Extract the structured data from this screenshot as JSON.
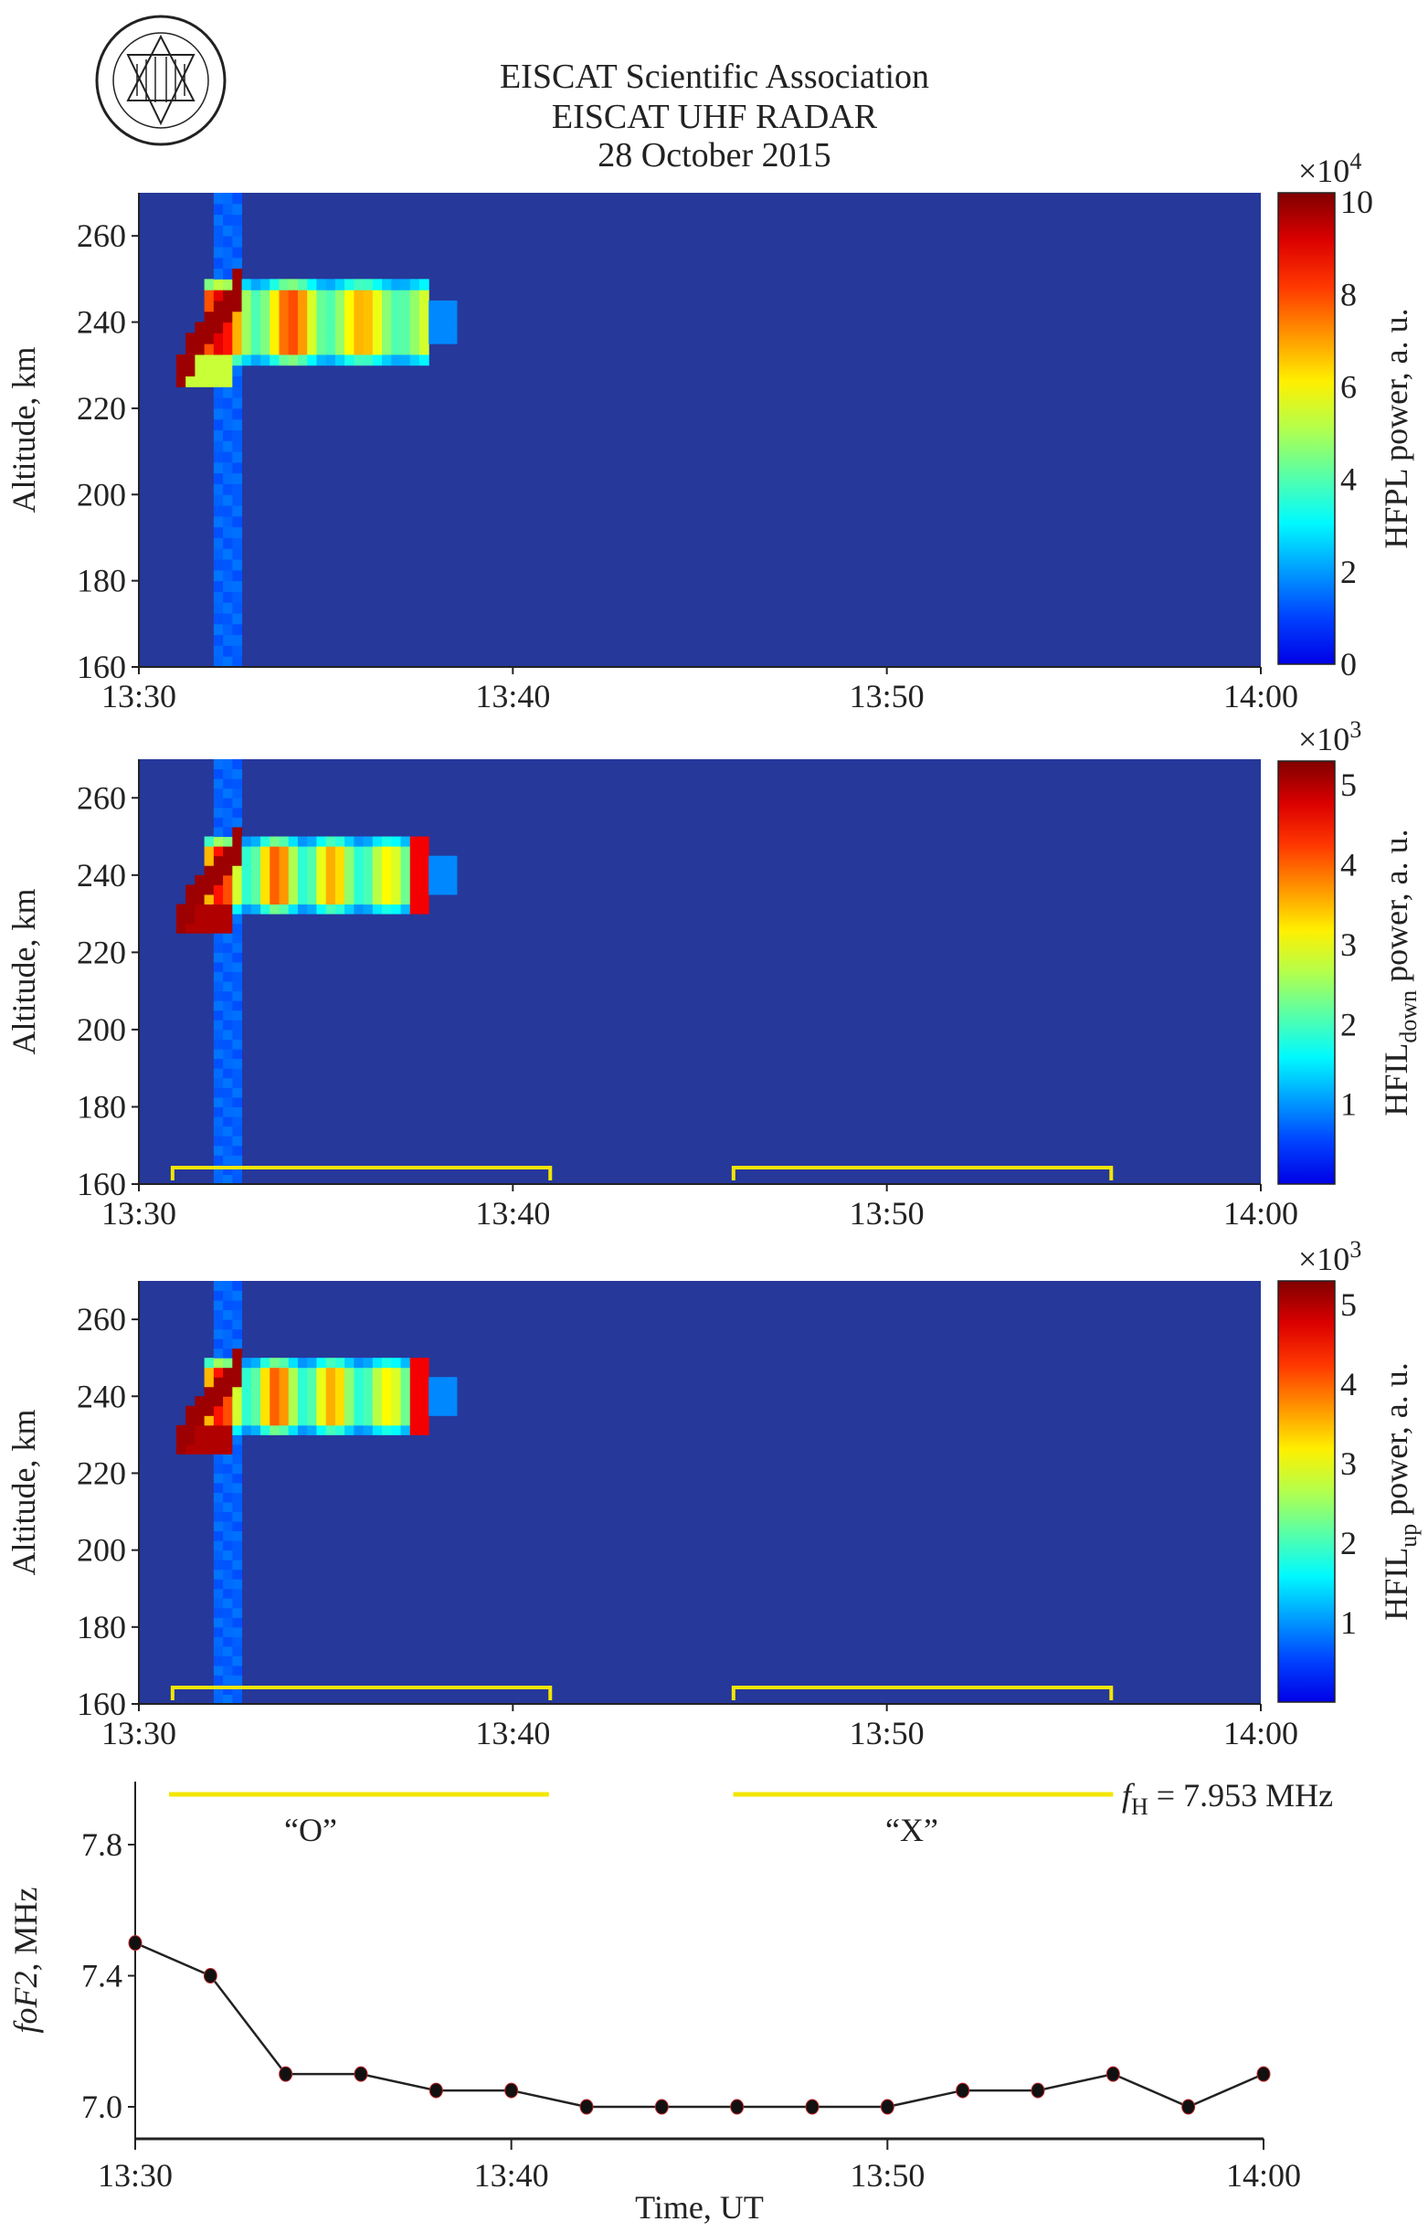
{
  "header": {
    "title_line1": "EISCAT Scientific Association",
    "title_line2": "EISCAT UHF RADAR",
    "title_line3": "28 October 2015",
    "logo": "EISCAT Scientific Association seal"
  },
  "chart_data": [
    {
      "type": "heatmap",
      "name": "HFPL",
      "ylabel": "Altitude, km",
      "xlabel": "",
      "x_ticks": [
        "13:30",
        "13:40",
        "13:50",
        "14:00"
      ],
      "xlim_min": [
        0,
        30
      ],
      "y_ticks": [
        160,
        180,
        200,
        220,
        240,
        260
      ],
      "ylim": [
        160,
        270
      ],
      "colorbar_label": "HFPL power, a. u.",
      "colorbar_label_main": "HFPL",
      "colorbar_label_sub": "",
      "colorbar_label_rest": " power, a. u.",
      "colorbar_exponent": "×10",
      "colorbar_exponent_power": "4",
      "colorbar_ticks": [
        0,
        2,
        4,
        6,
        8,
        10
      ],
      "clim": [
        0,
        10.2
      ],
      "brackets_min": []
    },
    {
      "type": "heatmap",
      "name": "HFIL_down",
      "ylabel": "Altitude, km",
      "xlabel": "",
      "x_ticks": [
        "13:30",
        "13:40",
        "13:50",
        "14:00"
      ],
      "xlim_min": [
        0,
        30
      ],
      "y_ticks": [
        160,
        180,
        200,
        220,
        240,
        260
      ],
      "ylim": [
        160,
        270
      ],
      "colorbar_label_main": "HFIL",
      "colorbar_label_sub": "down",
      "colorbar_label_rest": " power, a. u.",
      "colorbar_exponent": "×10",
      "colorbar_exponent_power": "3",
      "colorbar_ticks": [
        1,
        2,
        3,
        4,
        5
      ],
      "clim": [
        0,
        5.3
      ],
      "brackets_min": [
        [
          0.9,
          11
        ],
        [
          15.9,
          26
        ]
      ]
    },
    {
      "type": "heatmap",
      "name": "HFIL_up",
      "ylabel": "Altitude, km",
      "xlabel": "",
      "x_ticks": [
        "13:30",
        "13:40",
        "13:50",
        "14:00"
      ],
      "xlim_min": [
        0,
        30
      ],
      "y_ticks": [
        160,
        180,
        200,
        220,
        240,
        260
      ],
      "ylim": [
        160,
        270
      ],
      "colorbar_label_main": "HFIL",
      "colorbar_label_sub": "up",
      "colorbar_label_rest": " power, a. u.",
      "colorbar_exponent": "×10",
      "colorbar_exponent_power": "3",
      "colorbar_ticks": [
        1,
        2,
        3,
        4,
        5
      ],
      "clim": [
        0,
        5.3
      ],
      "brackets_min": [
        [
          0.9,
          11
        ],
        [
          15.9,
          26
        ]
      ]
    },
    {
      "type": "line",
      "name": "foF2",
      "xlabel": "Time, UT",
      "ylabel_italic": "foF2",
      "ylabel_rest": ", MHz",
      "x_ticks": [
        "13:30",
        "13:40",
        "13:50",
        "14:00"
      ],
      "xlim_min": [
        0,
        30
      ],
      "y_ticks": [
        "7.0",
        "7.4",
        "7.8"
      ],
      "ylim": [
        6.87,
        8.13
      ],
      "x_min": [
        0,
        2,
        4,
        6,
        8,
        10,
        12,
        14,
        16,
        18,
        20,
        22,
        24,
        26,
        28,
        30
      ],
      "y": [
        7.5,
        7.4,
        7.1,
        7.1,
        7.05,
        7.05,
        7.0,
        7.0,
        7.0,
        7.0,
        7.0,
        7.05,
        7.05,
        7.1,
        7.0,
        7.1
      ],
      "heating_periods_min": [
        [
          0.9,
          11
        ],
        [
          15.9,
          26
        ]
      ],
      "annotations": {
        "o_mode": "“O”",
        "x_mode": "“X”",
        "fh_symbol": "f",
        "fh_sub": "H",
        "fh_value": " = 7.953 MHz"
      },
      "colors": {
        "line": "#222222",
        "marker": "#111111",
        "heating": "#f2e600"
      }
    }
  ]
}
